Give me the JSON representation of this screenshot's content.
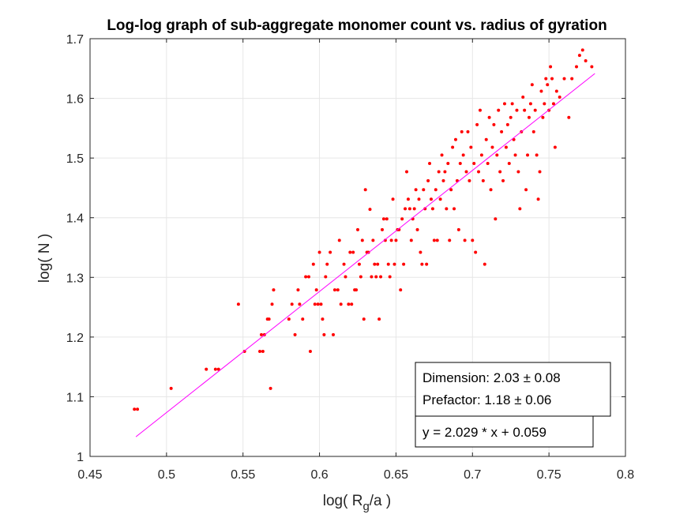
{
  "chart_data": {
    "type": "scatter",
    "title": "Log-log graph of sub-aggregate monomer count vs. radius of gyration",
    "xlabel": {
      "pre": "log( R",
      "sub": "g",
      "post": "/a )"
    },
    "ylabel": "log( N )",
    "xlim": [
      0.45,
      0.8
    ],
    "ylim": [
      1.0,
      1.7
    ],
    "xticks": [
      "0.45",
      "0.5",
      "0.55",
      "0.6",
      "0.65",
      "0.7",
      "0.75",
      "0.8"
    ],
    "yticks": [
      "1",
      "1.1",
      "1.2",
      "1.3",
      "1.4",
      "1.5",
      "1.6",
      "1.7"
    ],
    "grid": true,
    "marker_color": "#ff0000",
    "fit_color": "#ff00ff",
    "fit": {
      "slope": 2.029,
      "intercept": 0.059,
      "x_range": [
        0.48,
        0.78
      ]
    },
    "annotations": {
      "dimension": "Dimension: 2.03 ± 0.08",
      "prefactor": "Prefactor: 1.18 ± 0.06",
      "equation": "y = 2.029 * x + 0.059"
    },
    "points": [
      [
        0.479,
        1.079
      ],
      [
        0.481,
        1.079
      ],
      [
        0.503,
        1.114
      ],
      [
        0.526,
        1.146
      ],
      [
        0.532,
        1.146
      ],
      [
        0.534,
        1.146
      ],
      [
        0.547,
        1.255
      ],
      [
        0.551,
        1.176
      ],
      [
        0.561,
        1.176
      ],
      [
        0.563,
        1.176
      ],
      [
        0.562,
        1.204
      ],
      [
        0.564,
        1.204
      ],
      [
        0.566,
        1.23
      ],
      [
        0.567,
        1.23
      ],
      [
        0.568,
        1.114
      ],
      [
        0.569,
        1.255
      ],
      [
        0.57,
        1.279
      ],
      [
        0.58,
        1.23
      ],
      [
        0.582,
        1.255
      ],
      [
        0.584,
        1.204
      ],
      [
        0.586,
        1.279
      ],
      [
        0.587,
        1.255
      ],
      [
        0.589,
        1.23
      ],
      [
        0.591,
        1.301
      ],
      [
        0.593,
        1.301
      ],
      [
        0.594,
        1.176
      ],
      [
        0.596,
        1.322
      ],
      [
        0.597,
        1.255
      ],
      [
        0.598,
        1.279
      ],
      [
        0.599,
        1.255
      ],
      [
        0.6,
        1.342
      ],
      [
        0.601,
        1.255
      ],
      [
        0.602,
        1.23
      ],
      [
        0.603,
        1.204
      ],
      [
        0.604,
        1.301
      ],
      [
        0.605,
        1.322
      ],
      [
        0.607,
        1.342
      ],
      [
        0.609,
        1.204
      ],
      [
        0.61,
        1.279
      ],
      [
        0.612,
        1.279
      ],
      [
        0.613,
        1.362
      ],
      [
        0.614,
        1.255
      ],
      [
        0.616,
        1.322
      ],
      [
        0.617,
        1.301
      ],
      [
        0.619,
        1.255
      ],
      [
        0.621,
        1.255
      ],
      [
        0.62,
        1.342
      ],
      [
        0.622,
        1.342
      ],
      [
        0.623,
        1.279
      ],
      [
        0.624,
        1.279
      ],
      [
        0.625,
        1.38
      ],
      [
        0.626,
        1.322
      ],
      [
        0.627,
        1.301
      ],
      [
        0.628,
        1.362
      ],
      [
        0.629,
        1.23
      ],
      [
        0.63,
        1.447
      ],
      [
        0.631,
        1.342
      ],
      [
        0.632,
        1.342
      ],
      [
        0.633,
        1.414
      ],
      [
        0.634,
        1.301
      ],
      [
        0.635,
        1.362
      ],
      [
        0.636,
        1.322
      ],
      [
        0.637,
        1.301
      ],
      [
        0.638,
        1.322
      ],
      [
        0.639,
        1.23
      ],
      [
        0.64,
        1.301
      ],
      [
        0.641,
        1.38
      ],
      [
        0.642,
        1.398
      ],
      [
        0.643,
        1.362
      ],
      [
        0.644,
        1.398
      ],
      [
        0.645,
        1.322
      ],
      [
        0.646,
        1.301
      ],
      [
        0.647,
        1.362
      ],
      [
        0.648,
        1.431
      ],
      [
        0.649,
        1.322
      ],
      [
        0.65,
        1.362
      ],
      [
        0.651,
        1.38
      ],
      [
        0.652,
        1.38
      ],
      [
        0.653,
        1.279
      ],
      [
        0.654,
        1.398
      ],
      [
        0.655,
        1.322
      ],
      [
        0.656,
        1.415
      ],
      [
        0.657,
        1.477
      ],
      [
        0.658,
        1.431
      ],
      [
        0.659,
        1.415
      ],
      [
        0.66,
        1.362
      ],
      [
        0.661,
        1.398
      ],
      [
        0.662,
        1.415
      ],
      [
        0.663,
        1.447
      ],
      [
        0.664,
        1.38
      ],
      [
        0.665,
        1.431
      ],
      [
        0.666,
        1.342
      ],
      [
        0.667,
        1.322
      ],
      [
        0.668,
        1.447
      ],
      [
        0.669,
        1.415
      ],
      [
        0.67,
        1.322
      ],
      [
        0.671,
        1.462
      ],
      [
        0.672,
        1.491
      ],
      [
        0.673,
        1.431
      ],
      [
        0.674,
        1.415
      ],
      [
        0.675,
        1.362
      ],
      [
        0.676,
        1.447
      ],
      [
        0.677,
        1.362
      ],
      [
        0.678,
        1.477
      ],
      [
        0.679,
        1.431
      ],
      [
        0.68,
        1.505
      ],
      [
        0.681,
        1.462
      ],
      [
        0.682,
        1.477
      ],
      [
        0.683,
        1.415
      ],
      [
        0.684,
        1.491
      ],
      [
        0.685,
        1.362
      ],
      [
        0.686,
        1.447
      ],
      [
        0.687,
        1.518
      ],
      [
        0.688,
        1.415
      ],
      [
        0.689,
        1.531
      ],
      [
        0.69,
        1.462
      ],
      [
        0.691,
        1.38
      ],
      [
        0.692,
        1.491
      ],
      [
        0.693,
        1.544
      ],
      [
        0.694,
        1.505
      ],
      [
        0.695,
        1.362
      ],
      [
        0.696,
        1.477
      ],
      [
        0.697,
        1.544
      ],
      [
        0.698,
        1.462
      ],
      [
        0.699,
        1.518
      ],
      [
        0.7,
        1.362
      ],
      [
        0.701,
        1.491
      ],
      [
        0.702,
        1.342
      ],
      [
        0.703,
        1.556
      ],
      [
        0.704,
        1.477
      ],
      [
        0.705,
        1.58
      ],
      [
        0.706,
        1.505
      ],
      [
        0.707,
        1.462
      ],
      [
        0.708,
        1.322
      ],
      [
        0.709,
        1.531
      ],
      [
        0.71,
        1.491
      ],
      [
        0.711,
        1.568
      ],
      [
        0.712,
        1.447
      ],
      [
        0.713,
        1.518
      ],
      [
        0.714,
        1.556
      ],
      [
        0.715,
        1.398
      ],
      [
        0.716,
        1.505
      ],
      [
        0.717,
        1.58
      ],
      [
        0.718,
        1.477
      ],
      [
        0.719,
        1.544
      ],
      [
        0.72,
        1.462
      ],
      [
        0.721,
        1.591
      ],
      [
        0.722,
        1.518
      ],
      [
        0.723,
        1.556
      ],
      [
        0.724,
        1.491
      ],
      [
        0.725,
        1.568
      ],
      [
        0.726,
        1.591
      ],
      [
        0.727,
        1.531
      ],
      [
        0.728,
        1.505
      ],
      [
        0.729,
        1.58
      ],
      [
        0.73,
        1.477
      ],
      [
        0.731,
        1.415
      ],
      [
        0.732,
        1.544
      ],
      [
        0.733,
        1.602
      ],
      [
        0.734,
        1.58
      ],
      [
        0.735,
        1.447
      ],
      [
        0.736,
        1.505
      ],
      [
        0.737,
        1.568
      ],
      [
        0.738,
        1.591
      ],
      [
        0.739,
        1.623
      ],
      [
        0.74,
        1.544
      ],
      [
        0.741,
        1.58
      ],
      [
        0.742,
        1.505
      ],
      [
        0.743,
        1.431
      ],
      [
        0.744,
        1.477
      ],
      [
        0.745,
        1.612
      ],
      [
        0.746,
        1.568
      ],
      [
        0.747,
        1.591
      ],
      [
        0.748,
        1.633
      ],
      [
        0.749,
        1.623
      ],
      [
        0.75,
        1.58
      ],
      [
        0.751,
        1.653
      ],
      [
        0.752,
        1.633
      ],
      [
        0.753,
        1.591
      ],
      [
        0.754,
        1.518
      ],
      [
        0.755,
        1.612
      ],
      [
        0.757,
        1.602
      ],
      [
        0.76,
        1.633
      ],
      [
        0.763,
        1.568
      ],
      [
        0.765,
        1.633
      ],
      [
        0.768,
        1.653
      ],
      [
        0.77,
        1.672
      ],
      [
        0.772,
        1.681
      ],
      [
        0.774,
        1.663
      ],
      [
        0.778,
        1.653
      ]
    ]
  }
}
